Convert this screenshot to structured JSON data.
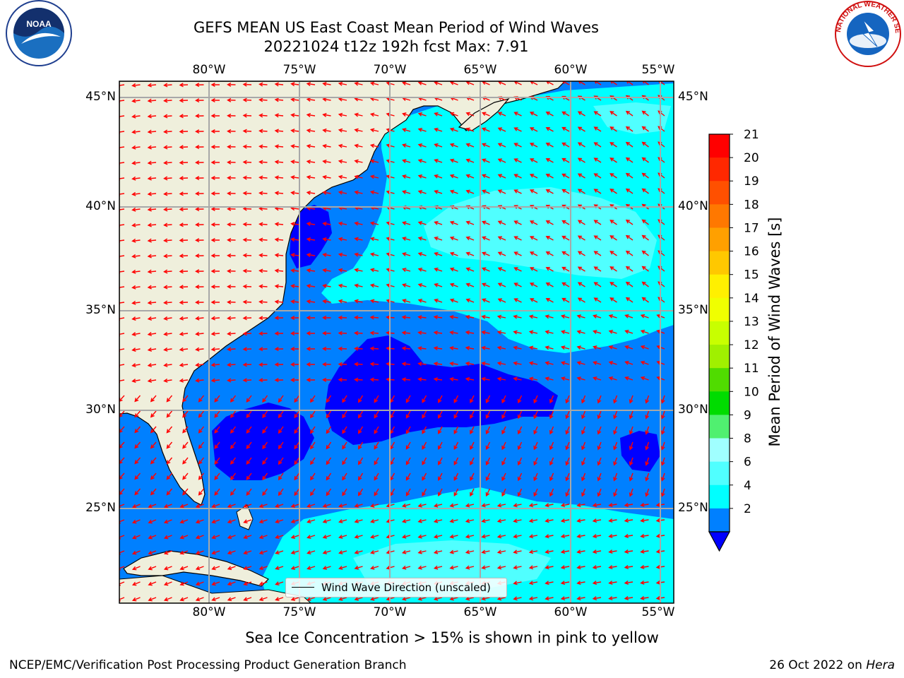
{
  "header": {
    "title_line1": "GEFS MEAN US East Coast Mean Period of Wind Waves",
    "title_line2": "20221024 t12z 192h fcst   Max: 7.91"
  },
  "logos": {
    "left": {
      "name": "noaa-logo",
      "text": "NOAA"
    },
    "right": {
      "name": "nws-logo",
      "text": "NATIONAL WEATHER SERVICE"
    }
  },
  "map": {
    "lon_labels": [
      "80°W",
      "75°W",
      "70°W",
      "65°W",
      "60°W",
      "55°W"
    ],
    "lat_labels": [
      "45°N",
      "40°N",
      "35°N",
      "30°N",
      "25°N"
    ],
    "lon_range": [
      -85,
      -54.4
    ],
    "lat_range": [
      20,
      46
    ],
    "land_color": "#efefdc",
    "vector_color": "#ff0000",
    "legend_text": "Wind Wave Direction (unscaled)"
  },
  "colorbar": {
    "label": "Mean Period of Wind Waves [s]",
    "ticks": [
      "21",
      "20",
      "19",
      "18",
      "17",
      "16",
      "15",
      "14",
      "13",
      "12",
      "11",
      "10",
      "9",
      "8",
      "6",
      "4",
      "2"
    ],
    "colors": [
      "#ff0000",
      "#ff2800",
      "#ff5000",
      "#ff7800",
      "#ffa000",
      "#ffc800",
      "#fff000",
      "#f0ff00",
      "#c8ff00",
      "#a0f000",
      "#50dc00",
      "#00dc00",
      "#50f070",
      "#a0ffff",
      "#50ffff",
      "#00ffff",
      "#0080ff"
    ],
    "underflow_color": "#0000ff"
  },
  "notes": {
    "ice": "Sea Ice Concentration > 15% is shown in pink to yellow",
    "footer_left": "NCEP/EMC/Verification Post Processing Product Generation Branch",
    "footer_date": "26 Oct 2022 on ",
    "footer_host": "Hera"
  }
}
